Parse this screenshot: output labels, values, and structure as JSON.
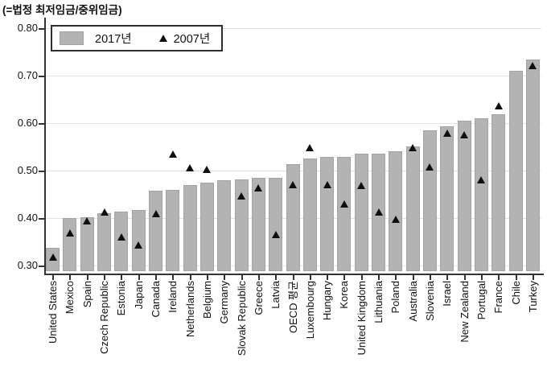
{
  "chart_data": {
    "type": "bar",
    "title": "(=법정 최저임금/중위임금)",
    "legend": {
      "series1": "2017년",
      "series2": "2007년",
      "position": "top-left-inside"
    },
    "categories": [
      "United States",
      "Mexico",
      "Spain",
      "Czech Republic",
      "Estonia",
      "Japan",
      "Canada",
      "Ireland",
      "Netherlands",
      "Belgium",
      "Germany",
      "Slovak Republic",
      "Greece",
      "Latvia",
      "OECD 평균",
      "Luxembourg",
      "Hungary",
      "Korea",
      "United Kingdom",
      "Lithuania",
      "Poland",
      "Australia",
      "Slovenia",
      "Israel",
      "New Zealand",
      "Portugal",
      "France",
      "Chile",
      "Turkey"
    ],
    "series": [
      {
        "name": "2017년",
        "type": "bar",
        "values": [
          0.337,
          0.4,
          0.402,
          0.41,
          0.414,
          0.417,
          0.457,
          0.459,
          0.47,
          0.474,
          0.48,
          0.482,
          0.485,
          0.485,
          0.513,
          0.526,
          0.528,
          0.529,
          0.536,
          0.536,
          0.541,
          0.55,
          0.584,
          0.593,
          0.605,
          0.61,
          0.619,
          0.711,
          0.734
        ]
      },
      {
        "name": "2007년",
        "type": "triangle-marker",
        "values": [
          0.318,
          0.369,
          0.394,
          0.412,
          0.361,
          0.344,
          0.41,
          0.534,
          0.506,
          0.503,
          null,
          0.446,
          0.464,
          0.366,
          0.47,
          0.548,
          0.47,
          0.43,
          0.468,
          0.413,
          0.397,
          0.549,
          0.508,
          0.578,
          0.576,
          0.48,
          0.637,
          null,
          0.722
        ]
      }
    ],
    "ylim": [
      0.285,
      0.82
    ],
    "yticks": [
      0.3,
      0.4,
      0.5,
      0.6,
      0.7,
      0.8
    ],
    "ytick_labels": [
      "0.30",
      "0.40",
      "0.50",
      "0.60",
      "0.70",
      "0.80"
    ],
    "grid": true,
    "legend_position": "top-left",
    "colors": {
      "bar_fill": "#b3b3b3",
      "bar_border": "#a3a3a3",
      "marker": "#0f0f0f",
      "grid": "#e2e2e2",
      "axis": "#333333",
      "text": "#111111"
    }
  }
}
